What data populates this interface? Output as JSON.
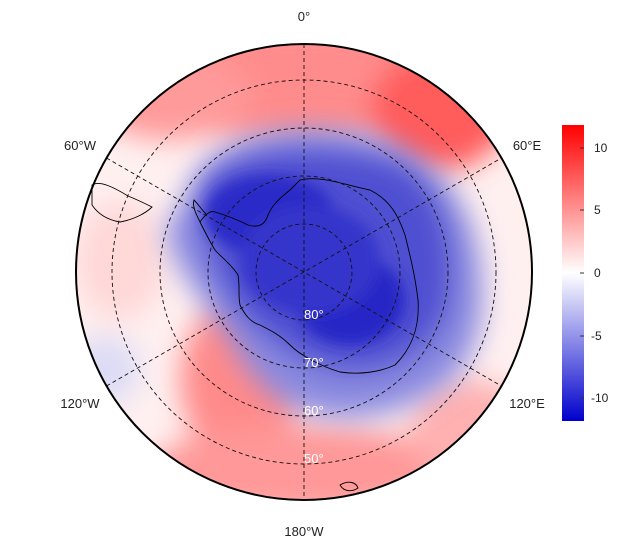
{
  "map": {
    "projection": "south-polar-stereographic",
    "longitude_labels": {
      "top": "0°",
      "upper_left": "60°W",
      "upper_right": "60°E",
      "lower_left": "120°W",
      "lower_right": "120°E",
      "bottom": "180°W"
    },
    "latitude_labels": [
      "80°",
      "70°",
      "60°",
      "50°"
    ],
    "graticule_style": "dashed",
    "colorbar": {
      "ticks": [
        "10",
        "5",
        "0",
        "-5",
        "-10"
      ],
      "range": [
        -12,
        12
      ],
      "colors": {
        "max": "#ff0000",
        "mid": "#ffffff",
        "min": "#0000cc"
      }
    }
  }
}
